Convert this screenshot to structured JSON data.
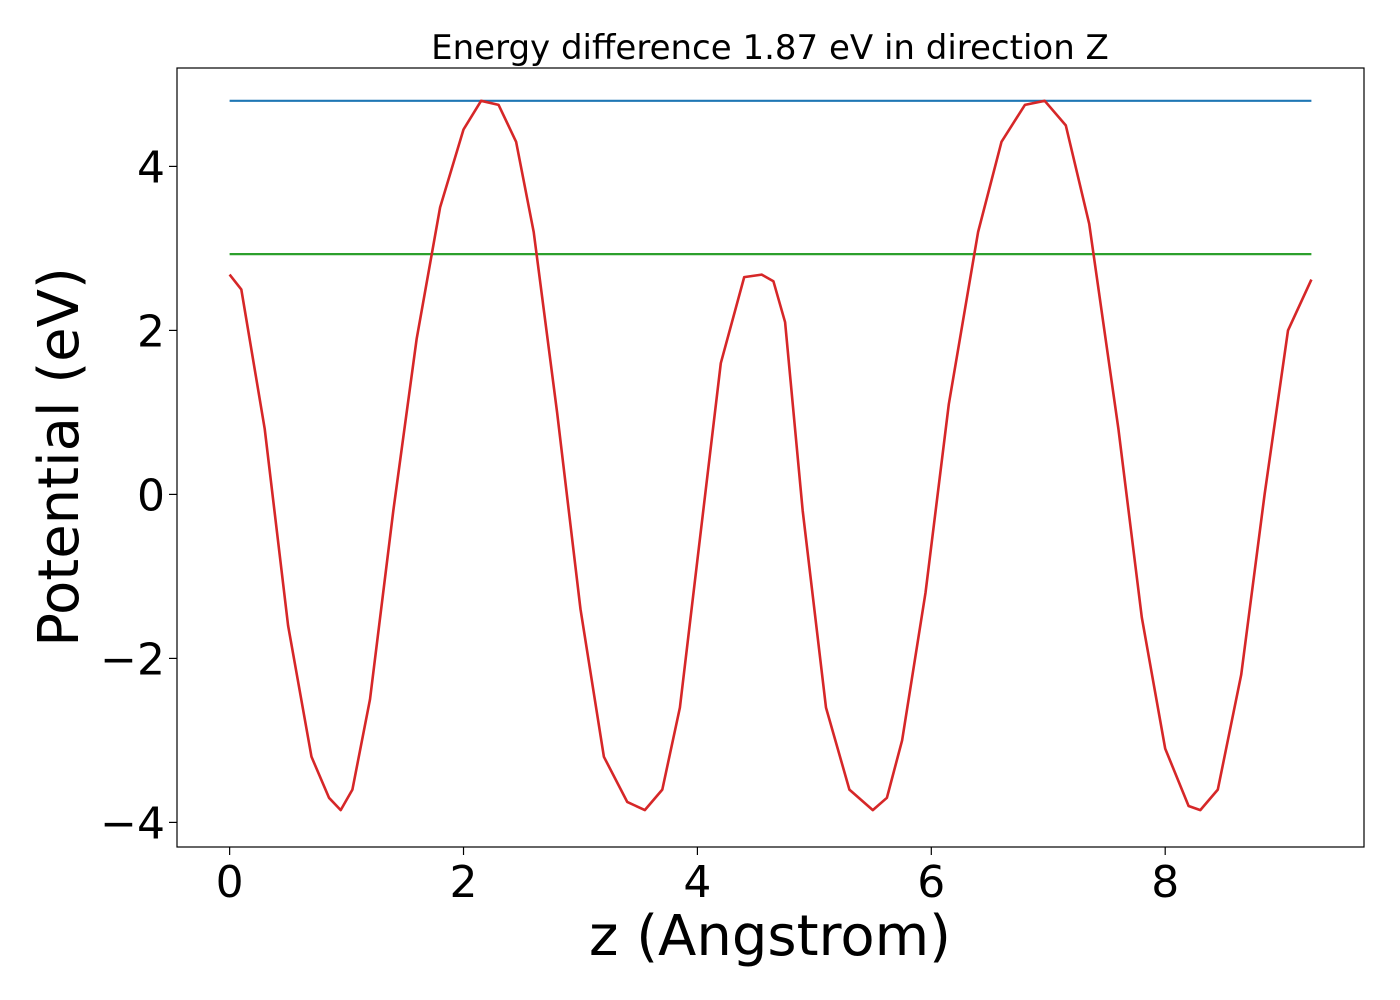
{
  "chart_data": {
    "type": "line",
    "title": "Energy difference 1.87 eV in direction Z",
    "xlabel": "z (Angstrom)",
    "ylabel": "Potential (eV)",
    "xlim": [
      -0.45,
      9.7
    ],
    "ylim": [
      -4.3,
      5.2
    ],
    "xticks": [
      0,
      2,
      4,
      6,
      8
    ],
    "xtick_labels": [
      "0",
      "2",
      "4",
      "6",
      "8"
    ],
    "yticks": [
      -4,
      -2,
      0,
      2,
      4
    ],
    "ytick_labels": [
      "−4",
      "−2",
      "0",
      "2",
      "4"
    ],
    "grid": false,
    "series": [
      {
        "color": "#1f77b4",
        "x": [
          0,
          9.25
        ],
        "y": [
          4.8,
          4.8
        ]
      },
      {
        "color": "#2ca02c",
        "x": [
          0,
          9.25
        ],
        "y": [
          2.93,
          2.93
        ]
      },
      {
        "color": "#d62728",
        "x": [
          0,
          0.1,
          0.3,
          0.5,
          0.7,
          0.85,
          0.95,
          1.05,
          1.2,
          1.4,
          1.6,
          1.8,
          2.0,
          2.15,
          2.3,
          2.45,
          2.6,
          2.8,
          3.0,
          3.2,
          3.4,
          3.55,
          3.7,
          3.85,
          4.0,
          4.2,
          4.4,
          4.55,
          4.65,
          4.75,
          4.9,
          5.1,
          5.3,
          5.5,
          5.62,
          5.75,
          5.95,
          6.15,
          6.4,
          6.6,
          6.8,
          6.97,
          7.15,
          7.35,
          7.6,
          7.8,
          8.0,
          8.2,
          8.3,
          8.45,
          8.65,
          8.85,
          9.05,
          9.25
        ],
        "y": [
          2.68,
          2.5,
          0.8,
          -1.6,
          -3.2,
          -3.7,
          -3.85,
          -3.6,
          -2.5,
          -0.2,
          1.9,
          3.5,
          4.45,
          4.8,
          4.75,
          4.3,
          3.2,
          1.0,
          -1.4,
          -3.2,
          -3.75,
          -3.85,
          -3.6,
          -2.6,
          -0.8,
          1.6,
          2.65,
          2.68,
          2.6,
          2.1,
          -0.2,
          -2.6,
          -3.6,
          -3.85,
          -3.7,
          -3.0,
          -1.2,
          1.1,
          3.2,
          4.3,
          4.75,
          4.8,
          4.5,
          3.3,
          0.8,
          -1.5,
          -3.1,
          -3.8,
          -3.85,
          -3.6,
          -2.2,
          0.0,
          2.0,
          2.62
        ]
      }
    ]
  }
}
